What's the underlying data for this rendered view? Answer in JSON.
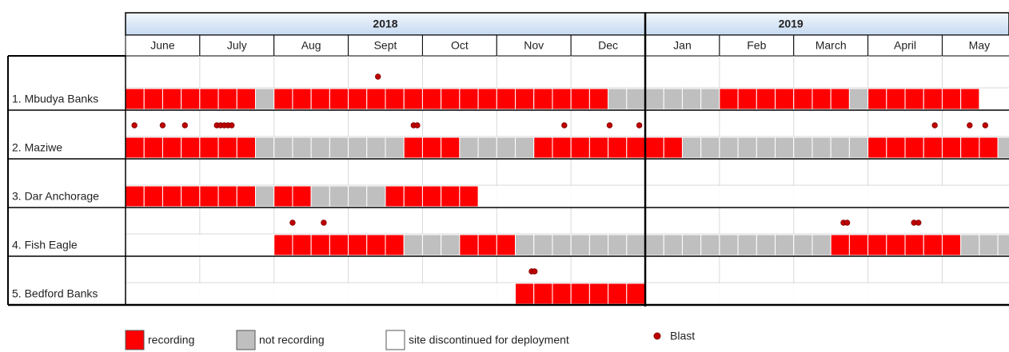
{
  "header": {
    "years": [
      {
        "label": "2018",
        "months": [
          "June",
          "July",
          "Aug",
          "Sept",
          "Oct",
          "Nov",
          "Dec"
        ]
      },
      {
        "label": "2019",
        "months": [
          "Jan",
          "Feb",
          "March",
          "April",
          "May"
        ]
      }
    ]
  },
  "legend": [
    {
      "label": "recording",
      "color": "#ff0000"
    },
    {
      "label": "not recording",
      "color": "#bfbfbf"
    },
    {
      "label": "site discontinued for deployment",
      "color": "#ffffff"
    }
  ],
  "blast_legend": {
    "label": "Blast",
    "color": "#c00000"
  },
  "sites": [
    {
      "label": "1. Mbudya Banks",
      "weeks": [
        0,
        0,
        0,
        0,
        0,
        0,
        0,
        1,
        0,
        0,
        0,
        0,
        0,
        0,
        0,
        0,
        0,
        0,
        0,
        0,
        0,
        0,
        0,
        0,
        0,
        0,
        1,
        1,
        1,
        1,
        1,
        1,
        0,
        0,
        0,
        0,
        0,
        0,
        0,
        1,
        0,
        0,
        0,
        0,
        0,
        0,
        2,
        2
      ],
      "blasts": [
        3.4
      ]
    },
    {
      "label": "2. Maziwe",
      "weeks": [
        0,
        0,
        0,
        0,
        0,
        0,
        0,
        1,
        1,
        1,
        1,
        1,
        1,
        1,
        1,
        0,
        0,
        0,
        1,
        1,
        1,
        1,
        0,
        0,
        0,
        0,
        0,
        0,
        0,
        0,
        1,
        1,
        1,
        1,
        1,
        1,
        1,
        1,
        1,
        1,
        0,
        0,
        0,
        0,
        0,
        0,
        0,
        1
      ],
      "blasts": [
        0.12,
        0.5,
        0.8,
        1.23,
        1.28,
        1.33,
        1.38,
        1.43,
        3.88,
        3.93,
        5.91,
        6.52,
        6.92,
        10.9,
        11.37,
        11.58
      ]
    },
    {
      "label": "3. Dar Anchorage",
      "weeks": [
        0,
        0,
        0,
        0,
        0,
        0,
        0,
        1,
        0,
        0,
        1,
        1,
        1,
        1,
        0,
        0,
        0,
        0,
        0,
        2,
        2,
        2,
        2,
        2,
        2,
        2,
        2,
        2,
        2,
        2,
        2,
        2,
        2,
        2,
        2,
        2,
        2,
        2,
        2,
        2,
        2,
        2,
        2,
        2,
        2,
        2,
        2,
        2
      ],
      "blasts": []
    },
    {
      "label": "4. Fish Eagle",
      "weeks": [
        2,
        2,
        2,
        2,
        2,
        2,
        2,
        2,
        0,
        0,
        0,
        0,
        0,
        0,
        0,
        1,
        1,
        1,
        0,
        0,
        0,
        1,
        1,
        1,
        1,
        1,
        1,
        1,
        1,
        1,
        1,
        1,
        1,
        1,
        1,
        1,
        1,
        1,
        0,
        0,
        0,
        0,
        0,
        0,
        0,
        1,
        1,
        1
      ],
      "blasts": [
        2.25,
        2.67,
        9.67,
        9.72,
        10.62,
        10.68
      ]
    },
    {
      "label": "5. Bedford Banks",
      "weeks": [
        2,
        2,
        2,
        2,
        2,
        2,
        2,
        2,
        2,
        2,
        2,
        2,
        2,
        2,
        2,
        2,
        2,
        2,
        2,
        2,
        2,
        0,
        0,
        0,
        0,
        0,
        0,
        0,
        2,
        2,
        2,
        2,
        2,
        2,
        2,
        2,
        2,
        2,
        2,
        2,
        2,
        2,
        2,
        2,
        2,
        2,
        2,
        2
      ],
      "blasts": [
        5.47,
        5.51
      ]
    }
  ]
}
